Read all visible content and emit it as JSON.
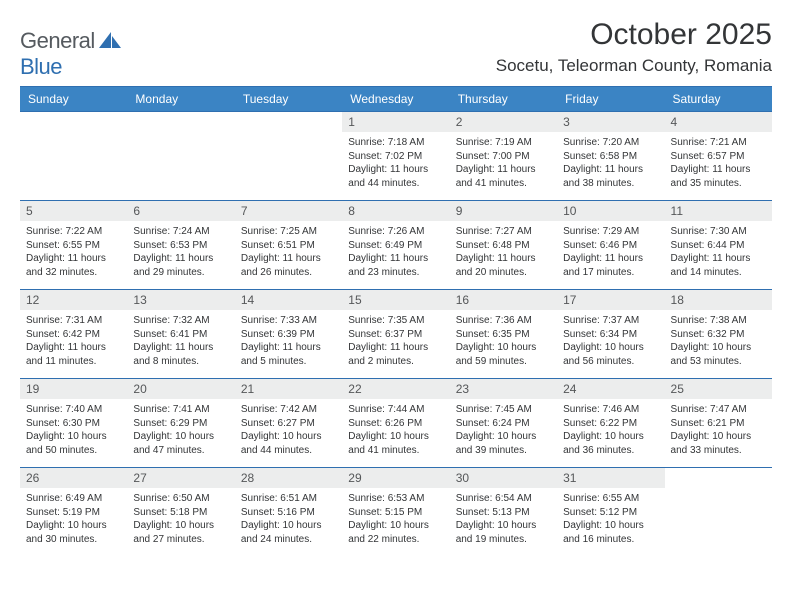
{
  "brand": {
    "word1": "General",
    "word2": "Blue"
  },
  "title": "October 2025",
  "location": "Socetu, Teleorman County, Romania",
  "colors": {
    "header_bg": "#3b84c4",
    "border": "#2f6fb0",
    "daynum_bg": "#eceded",
    "text": "#333537",
    "brand_gray": "#555a5f",
    "brand_blue": "#2f6fb0"
  },
  "day_names": [
    "Sunday",
    "Monday",
    "Tuesday",
    "Wednesday",
    "Thursday",
    "Friday",
    "Saturday"
  ],
  "weeks": [
    [
      {
        "n": "",
        "sr": "",
        "ss": "",
        "dl": ""
      },
      {
        "n": "",
        "sr": "",
        "ss": "",
        "dl": ""
      },
      {
        "n": "",
        "sr": "",
        "ss": "",
        "dl": ""
      },
      {
        "n": "1",
        "sr": "7:18 AM",
        "ss": "7:02 PM",
        "dl": "11 hours and 44 minutes."
      },
      {
        "n": "2",
        "sr": "7:19 AM",
        "ss": "7:00 PM",
        "dl": "11 hours and 41 minutes."
      },
      {
        "n": "3",
        "sr": "7:20 AM",
        "ss": "6:58 PM",
        "dl": "11 hours and 38 minutes."
      },
      {
        "n": "4",
        "sr": "7:21 AM",
        "ss": "6:57 PM",
        "dl": "11 hours and 35 minutes."
      }
    ],
    [
      {
        "n": "5",
        "sr": "7:22 AM",
        "ss": "6:55 PM",
        "dl": "11 hours and 32 minutes."
      },
      {
        "n": "6",
        "sr": "7:24 AM",
        "ss": "6:53 PM",
        "dl": "11 hours and 29 minutes."
      },
      {
        "n": "7",
        "sr": "7:25 AM",
        "ss": "6:51 PM",
        "dl": "11 hours and 26 minutes."
      },
      {
        "n": "8",
        "sr": "7:26 AM",
        "ss": "6:49 PM",
        "dl": "11 hours and 23 minutes."
      },
      {
        "n": "9",
        "sr": "7:27 AM",
        "ss": "6:48 PM",
        "dl": "11 hours and 20 minutes."
      },
      {
        "n": "10",
        "sr": "7:29 AM",
        "ss": "6:46 PM",
        "dl": "11 hours and 17 minutes."
      },
      {
        "n": "11",
        "sr": "7:30 AM",
        "ss": "6:44 PM",
        "dl": "11 hours and 14 minutes."
      }
    ],
    [
      {
        "n": "12",
        "sr": "7:31 AM",
        "ss": "6:42 PM",
        "dl": "11 hours and 11 minutes."
      },
      {
        "n": "13",
        "sr": "7:32 AM",
        "ss": "6:41 PM",
        "dl": "11 hours and 8 minutes."
      },
      {
        "n": "14",
        "sr": "7:33 AM",
        "ss": "6:39 PM",
        "dl": "11 hours and 5 minutes."
      },
      {
        "n": "15",
        "sr": "7:35 AM",
        "ss": "6:37 PM",
        "dl": "11 hours and 2 minutes."
      },
      {
        "n": "16",
        "sr": "7:36 AM",
        "ss": "6:35 PM",
        "dl": "10 hours and 59 minutes."
      },
      {
        "n": "17",
        "sr": "7:37 AM",
        "ss": "6:34 PM",
        "dl": "10 hours and 56 minutes."
      },
      {
        "n": "18",
        "sr": "7:38 AM",
        "ss": "6:32 PM",
        "dl": "10 hours and 53 minutes."
      }
    ],
    [
      {
        "n": "19",
        "sr": "7:40 AM",
        "ss": "6:30 PM",
        "dl": "10 hours and 50 minutes."
      },
      {
        "n": "20",
        "sr": "7:41 AM",
        "ss": "6:29 PM",
        "dl": "10 hours and 47 minutes."
      },
      {
        "n": "21",
        "sr": "7:42 AM",
        "ss": "6:27 PM",
        "dl": "10 hours and 44 minutes."
      },
      {
        "n": "22",
        "sr": "7:44 AM",
        "ss": "6:26 PM",
        "dl": "10 hours and 41 minutes."
      },
      {
        "n": "23",
        "sr": "7:45 AM",
        "ss": "6:24 PM",
        "dl": "10 hours and 39 minutes."
      },
      {
        "n": "24",
        "sr": "7:46 AM",
        "ss": "6:22 PM",
        "dl": "10 hours and 36 minutes."
      },
      {
        "n": "25",
        "sr": "7:47 AM",
        "ss": "6:21 PM",
        "dl": "10 hours and 33 minutes."
      }
    ],
    [
      {
        "n": "26",
        "sr": "6:49 AM",
        "ss": "5:19 PM",
        "dl": "10 hours and 30 minutes."
      },
      {
        "n": "27",
        "sr": "6:50 AM",
        "ss": "5:18 PM",
        "dl": "10 hours and 27 minutes."
      },
      {
        "n": "28",
        "sr": "6:51 AM",
        "ss": "5:16 PM",
        "dl": "10 hours and 24 minutes."
      },
      {
        "n": "29",
        "sr": "6:53 AM",
        "ss": "5:15 PM",
        "dl": "10 hours and 22 minutes."
      },
      {
        "n": "30",
        "sr": "6:54 AM",
        "ss": "5:13 PM",
        "dl": "10 hours and 19 minutes."
      },
      {
        "n": "31",
        "sr": "6:55 AM",
        "ss": "5:12 PM",
        "dl": "10 hours and 16 minutes."
      },
      {
        "n": "",
        "sr": "",
        "ss": "",
        "dl": ""
      }
    ]
  ],
  "labels": {
    "sunrise": "Sunrise:",
    "sunset": "Sunset:",
    "daylight": "Daylight:"
  }
}
